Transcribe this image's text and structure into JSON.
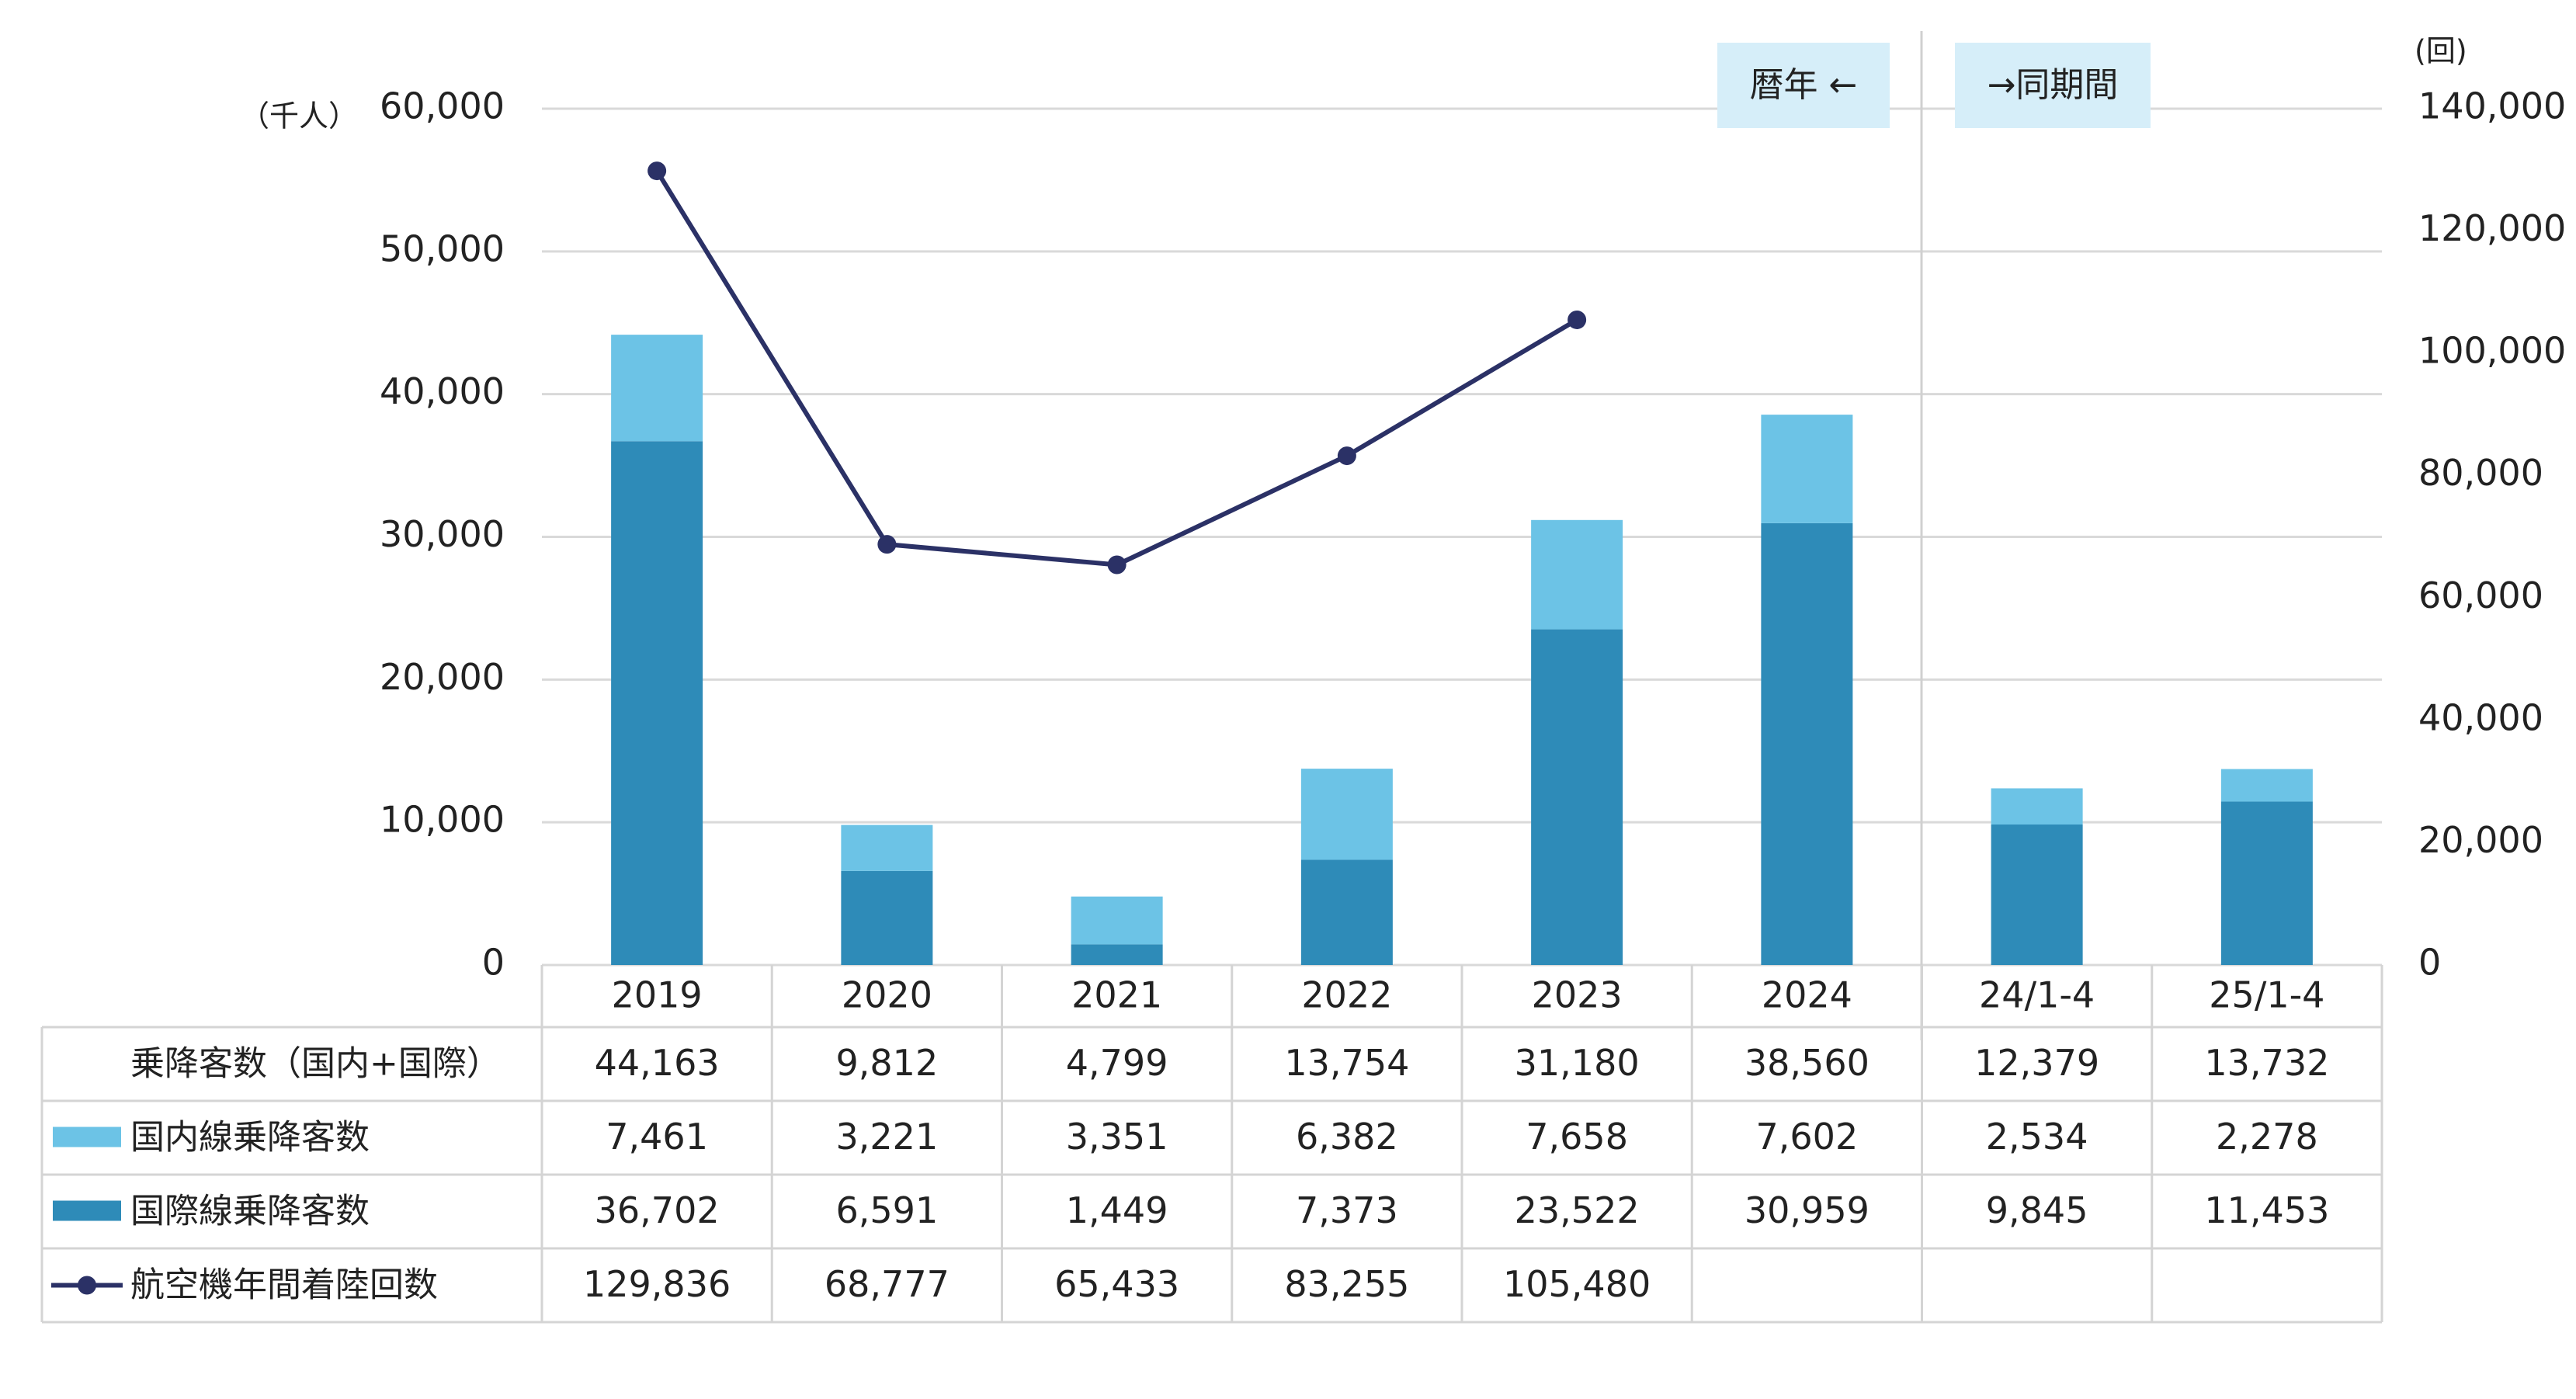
{
  "chart_data": {
    "type": "bar",
    "categories": [
      "2019",
      "2020",
      "2021",
      "2022",
      "2023",
      "2024",
      "24/1-4",
      "25/1-4"
    ],
    "left_axis": {
      "unit": "（千人）",
      "ylim": [
        0,
        60000
      ],
      "ticks": [
        "0",
        "10,000",
        "20,000",
        "30,000",
        "40,000",
        "50,000",
        "60,000"
      ]
    },
    "right_axis": {
      "unit": "(回)",
      "ylim": [
        0,
        140000
      ],
      "ticks": [
        "0",
        "20,000",
        "40,000",
        "60,000",
        "80,000",
        "100,000",
        "120,000",
        "140,000"
      ]
    },
    "annotations": {
      "calendar_year": "暦年 ←",
      "same_period": "→同期間"
    },
    "series": [
      {
        "name": "国際線乗降客数",
        "kind": "bar",
        "stack": "bottom",
        "color": "#2E8BB8",
        "values": [
          36702,
          6591,
          1449,
          7373,
          23522,
          30959,
          9845,
          11453
        ]
      },
      {
        "name": "国内線乗降客数",
        "kind": "bar",
        "stack": "top",
        "color": "#6CC3E6",
        "values": [
          7461,
          3221,
          3351,
          6382,
          7658,
          7602,
          2534,
          2278
        ]
      },
      {
        "name": "航空機年間着陸回数",
        "kind": "line",
        "axis": "right",
        "color": "#2B3166",
        "values": [
          129836,
          68777,
          65433,
          83255,
          105480,
          null,
          null,
          null
        ]
      }
    ],
    "table": {
      "rows": [
        {
          "label": "乗降客数（国内+国際）",
          "legend": "none",
          "cells": [
            "44,163",
            "9,812",
            "4,799",
            "13,754",
            "31,180",
            "38,560",
            "12,379",
            "13,732"
          ]
        },
        {
          "label": "国内線乗降客数",
          "legend": "bar-light",
          "cells": [
            "7,461",
            "3,221",
            "3,351",
            "6,382",
            "7,658",
            "7,602",
            "2,534",
            "2,278"
          ]
        },
        {
          "label": "国際線乗降客数",
          "legend": "bar-dark",
          "cells": [
            "36,702",
            "6,591",
            "1,449",
            "7,373",
            "23,522",
            "30,959",
            "9,845",
            "11,453"
          ]
        },
        {
          "label": "航空機年間着陸回数",
          "legend": "line",
          "cells": [
            "129,836",
            "68,777",
            "65,433",
            "83,255",
            "105,480",
            "",
            "",
            ""
          ]
        }
      ]
    },
    "grid": true
  }
}
